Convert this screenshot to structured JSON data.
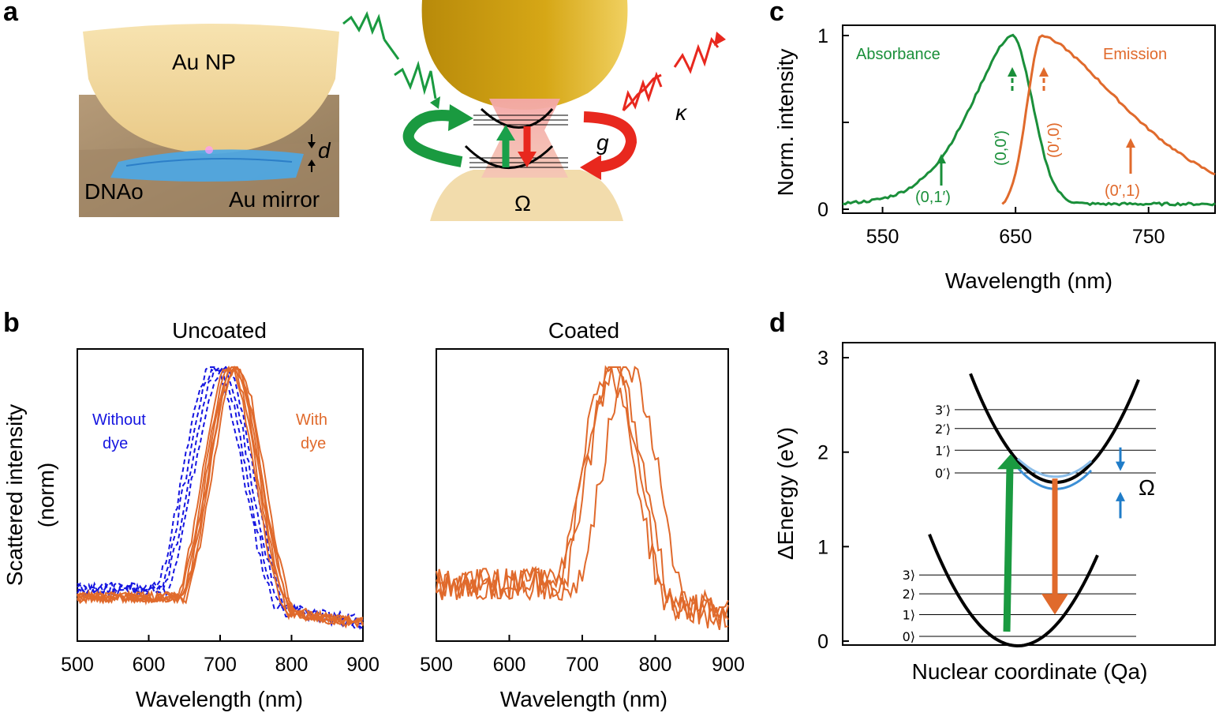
{
  "figure": {
    "panel_labels": [
      "a",
      "b",
      "c",
      "d"
    ],
    "a": {
      "au_np": "Au NP",
      "dnao": "DNAo",
      "au_mirror": "Au mirror",
      "gap": "d",
      "coupling": "g",
      "loss": "κ",
      "vib": "Ω"
    },
    "b": {
      "left_title": "Uncoated",
      "right_title": "Coated",
      "ylabel_line1": "Scattered intensity",
      "ylabel_line2": "(norm)",
      "without_dye_1": "Without",
      "without_dye_2": "dye",
      "with_dye_1": "With",
      "with_dye_2": "dye"
    },
    "c": {
      "absorbance": "Absorbance",
      "emission": "Emission",
      "ann_01p": "(0,1′)",
      "ann_00p": "(0,0′)",
      "ann_0p0": "(0′,0)",
      "ann_0p1": "(0′,1)"
    },
    "d": {
      "upper_levels": [
        "0′⟩",
        "1′⟩",
        "2′⟩",
        "3′⟩"
      ],
      "lower_levels": [
        "0⟩",
        "1⟩",
        "2⟩",
        "3⟩"
      ],
      "omega": "Ω"
    }
  },
  "colors": {
    "green": "#1a8f3a",
    "orange": "#e06a2c",
    "blue": "#1515e0",
    "lightblue": "#3c8fd6",
    "gold": "#c99a10",
    "red": "#e8281e"
  },
  "chart_data": [
    {
      "id": "b-uncoated",
      "type": "line",
      "title": "Uncoated",
      "xlabel": "Wavelength (nm)",
      "ylabel": "Scattered intensity (norm)",
      "xlim": [
        500,
        900
      ],
      "ylim": [
        0,
        1
      ],
      "xticks": [
        "500",
        "600",
        "700",
        "800",
        "900"
      ],
      "series": [
        {
          "name": "Without dye",
          "style": "dashed",
          "color": "#1515e0",
          "peaks": [
            690,
            695,
            700,
            705
          ]
        },
        {
          "name": "With dye",
          "style": "solid",
          "color": "#e06a2c",
          "peaks": [
            712,
            715,
            718,
            720,
            722,
            725
          ]
        }
      ]
    },
    {
      "id": "b-coated",
      "type": "line",
      "title": "Coated",
      "xlabel": "Wavelength (nm)",
      "xlim": [
        500,
        900
      ],
      "ylim": [
        0,
        1
      ],
      "xticks": [
        "500",
        "600",
        "700",
        "800",
        "900"
      ],
      "series": [
        {
          "name": "Coated",
          "style": "solid",
          "color": "#e06a2c",
          "peaks": [
            735,
            740,
            745,
            765
          ]
        }
      ]
    },
    {
      "id": "c",
      "type": "line",
      "xlabel": "Wavelength (nm)",
      "ylabel": "Norm. intensity",
      "xlim": [
        520,
        800
      ],
      "ylim": [
        0,
        1
      ],
      "xticks": [
        "550",
        "650",
        "750"
      ],
      "yticks": [
        "0",
        "1"
      ],
      "series": [
        {
          "name": "Absorbance",
          "color": "#1a8f3a",
          "peak": 647
        },
        {
          "name": "Emission",
          "color": "#e06a2c",
          "peak": 670
        }
      ]
    },
    {
      "id": "d",
      "type": "diagram",
      "xlabel": "Nuclear coordinate (Qa)",
      "ylabel": "ΔEnergy (eV)",
      "ylim": [
        0,
        3
      ],
      "yticks": [
        "0",
        "1",
        "2",
        "3"
      ],
      "ground_levels_eV": [
        0.05,
        0.28,
        0.5,
        0.7
      ],
      "excited_levels_eV": [
        1.78,
        2.02,
        2.25,
        2.45
      ],
      "excited_min_eV": 1.68
    }
  ]
}
